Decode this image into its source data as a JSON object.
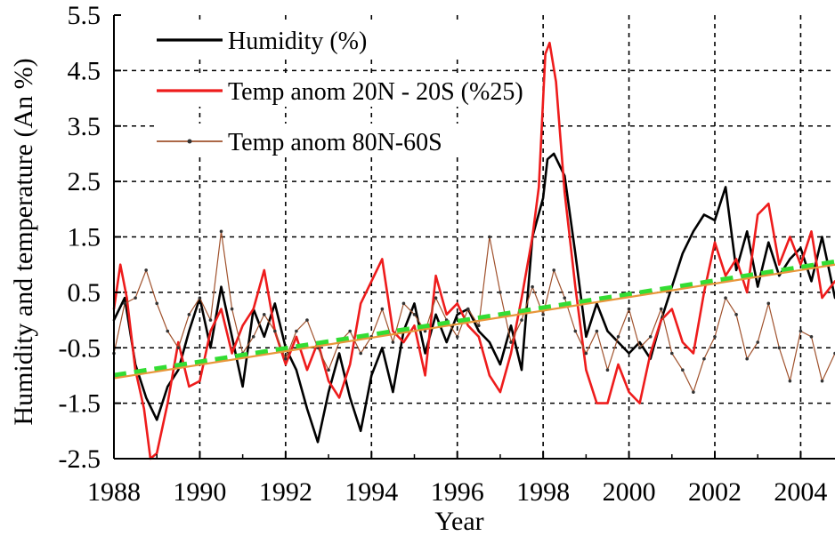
{
  "chart_data": {
    "type": "line",
    "title": "",
    "xlabel": "Year",
    "ylabel": "Humidity and temperature (An %)",
    "xlim": [
      1988,
      2004.8
    ],
    "ylim": [
      -2.5,
      5.5
    ],
    "x_ticks": [
      1988,
      1990,
      1992,
      1994,
      1996,
      1998,
      2000,
      2002,
      2004
    ],
    "x_tick_labels": [
      "1988",
      "1990",
      "1992",
      "1994",
      "1996",
      "1998",
      "2000",
      "2002",
      "2004"
    ],
    "y_ticks": [
      -2.5,
      -1.5,
      -0.5,
      0.5,
      1.5,
      2.5,
      3.5,
      4.5,
      5.5
    ],
    "y_tick_labels": [
      "-2.5",
      "-1.5",
      "-0.5",
      "0.5",
      "1.5",
      "2.5",
      "3.5",
      "4.5",
      "5.5"
    ],
    "grid": true,
    "legend_position": "top-left",
    "series": [
      {
        "name": "Humidity (%)",
        "color": "#000000",
        "width": 2.6,
        "x": [
          1988.0,
          1988.25,
          1988.5,
          1988.75,
          1989.0,
          1989.25,
          1989.5,
          1989.75,
          1990.0,
          1990.25,
          1990.5,
          1990.75,
          1991.0,
          1991.25,
          1991.5,
          1991.75,
          1992.0,
          1992.25,
          1992.5,
          1992.75,
          1993.0,
          1993.25,
          1993.5,
          1993.75,
          1994.0,
          1994.25,
          1994.5,
          1994.75,
          1995.0,
          1995.25,
          1995.5,
          1995.75,
          1996.0,
          1996.25,
          1996.5,
          1996.75,
          1997.0,
          1997.25,
          1997.5,
          1997.75,
          1998.0,
          1998.1,
          1998.25,
          1998.5,
          1998.75,
          1999.0,
          1999.25,
          1999.5,
          1999.75,
          2000.0,
          2000.25,
          2000.5,
          2000.75,
          2001.0,
          2001.25,
          2001.5,
          2001.75,
          2002.0,
          2002.25,
          2002.5,
          2002.75,
          2003.0,
          2003.25,
          2003.5,
          2003.75,
          2004.0,
          2004.25,
          2004.5,
          2004.8
        ],
        "y": [
          0.0,
          0.4,
          -0.8,
          -1.4,
          -1.8,
          -1.2,
          -0.9,
          -0.2,
          0.4,
          -0.5,
          0.6,
          -0.3,
          -1.2,
          0.2,
          -0.3,
          0.3,
          -0.5,
          -0.9,
          -1.6,
          -2.2,
          -1.3,
          -0.6,
          -1.4,
          -2.0,
          -1.0,
          -0.5,
          -1.3,
          -0.2,
          0.3,
          -0.6,
          0.1,
          -0.4,
          0.1,
          0.2,
          -0.2,
          -0.4,
          -0.8,
          -0.1,
          -0.9,
          1.5,
          2.2,
          2.9,
          3.0,
          2.6,
          1.2,
          -0.3,
          0.3,
          -0.2,
          -0.4,
          -0.6,
          -0.4,
          -0.7,
          0.0,
          0.6,
          1.2,
          1.6,
          1.9,
          1.8,
          2.4,
          0.9,
          1.6,
          0.6,
          1.4,
          0.8,
          1.1,
          1.3,
          0.7,
          1.5,
          0.4
        ]
      },
      {
        "name": "Temp anom 20N - 20S (%25)",
        "color": "#ee1c1c",
        "width": 2.6,
        "x": [
          1988.0,
          1988.15,
          1988.3,
          1988.5,
          1988.7,
          1988.85,
          1989.0,
          1989.25,
          1989.5,
          1989.75,
          1990.0,
          1990.25,
          1990.5,
          1990.75,
          1991.0,
          1991.25,
          1991.5,
          1991.75,
          1992.0,
          1992.25,
          1992.5,
          1992.75,
          1993.0,
          1993.25,
          1993.5,
          1993.75,
          1994.0,
          1994.25,
          1994.5,
          1994.75,
          1995.0,
          1995.25,
          1995.5,
          1995.75,
          1996.0,
          1996.25,
          1996.5,
          1996.75,
          1997.0,
          1997.25,
          1997.5,
          1997.75,
          1997.9,
          1998.05,
          1998.15,
          1998.3,
          1998.5,
          1998.75,
          1999.0,
          1999.25,
          1999.5,
          1999.75,
          2000.0,
          2000.25,
          2000.5,
          2000.75,
          2001.0,
          2001.25,
          2001.5,
          2001.75,
          2002.0,
          2002.25,
          2002.5,
          2002.75,
          2003.0,
          2003.25,
          2003.5,
          2003.75,
          2004.0,
          2004.25,
          2004.5,
          2004.8
        ],
        "y": [
          0.2,
          1.0,
          0.4,
          -0.9,
          -1.6,
          -2.5,
          -2.4,
          -1.5,
          -0.4,
          -1.2,
          -1.1,
          -0.2,
          0.2,
          -0.6,
          -0.1,
          0.2,
          0.9,
          -0.2,
          -0.8,
          -0.3,
          -0.9,
          -0.4,
          -1.1,
          -1.4,
          -0.8,
          0.3,
          0.7,
          1.1,
          -0.2,
          -0.4,
          -0.1,
          -1.0,
          0.8,
          0.1,
          0.3,
          -0.1,
          -0.3,
          -1.0,
          -1.3,
          -0.6,
          0.4,
          1.5,
          2.4,
          4.8,
          5.0,
          4.3,
          2.3,
          0.6,
          -0.9,
          -1.5,
          -1.5,
          -0.8,
          -1.3,
          -1.5,
          -0.6,
          0.0,
          0.2,
          -0.4,
          -0.6,
          0.5,
          1.4,
          0.8,
          1.1,
          0.5,
          1.9,
          2.1,
          1.0,
          1.5,
          1.0,
          1.6,
          0.4,
          0.7
        ]
      },
      {
        "name": "Temp anom 80N-60S",
        "color": "#a0522d",
        "width": 1.2,
        "markers": true,
        "x": [
          1988.0,
          1988.25,
          1988.5,
          1988.75,
          1989.0,
          1989.25,
          1989.5,
          1989.75,
          1990.0,
          1990.25,
          1990.5,
          1990.75,
          1991.0,
          1991.25,
          1991.5,
          1991.75,
          1992.0,
          1992.25,
          1992.5,
          1992.75,
          1993.0,
          1993.25,
          1993.5,
          1993.75,
          1994.0,
          1994.25,
          1994.5,
          1994.75,
          1995.0,
          1995.25,
          1995.5,
          1995.75,
          1996.0,
          1996.25,
          1996.5,
          1996.75,
          1997.0,
          1997.25,
          1997.5,
          1997.75,
          1998.0,
          1998.25,
          1998.5,
          1998.75,
          1999.0,
          1999.25,
          1999.5,
          1999.75,
          2000.0,
          2000.25,
          2000.5,
          2000.75,
          2001.0,
          2001.25,
          2001.5,
          2001.75,
          2002.0,
          2002.25,
          2002.5,
          2002.75,
          2003.0,
          2003.25,
          2003.5,
          2003.75,
          2004.0,
          2004.25,
          2004.5,
          2004.8
        ],
        "y": [
          -0.6,
          0.3,
          0.4,
          0.9,
          0.3,
          -0.2,
          -0.5,
          0.1,
          0.4,
          0.0,
          1.6,
          0.2,
          -0.6,
          -0.3,
          0.1,
          -0.2,
          -0.7,
          -0.2,
          0.0,
          -0.5,
          -0.9,
          -0.4,
          -0.2,
          -0.6,
          -0.3,
          0.2,
          -0.4,
          0.3,
          0.1,
          -0.2,
          0.4,
          0.0,
          -0.3,
          0.2,
          -0.1,
          1.5,
          0.5,
          -0.4,
          0.0,
          0.6,
          0.1,
          0.9,
          0.4,
          -0.2,
          -0.6,
          -0.2,
          -0.9,
          -0.3,
          0.2,
          -0.5,
          -0.3,
          0.2,
          -0.6,
          -0.9,
          -1.3,
          -0.7,
          -0.3,
          0.4,
          0.1,
          -0.7,
          -0.4,
          0.3,
          -0.5,
          -1.1,
          -0.2,
          -0.3,
          -1.1,
          -0.6
        ]
      },
      {
        "color": "#33dd33",
        "dashed": true,
        "width": 5.5,
        "x": [
          1988.0,
          2004.8
        ],
        "y": [
          -1.0,
          1.05
        ]
      },
      {
        "color": "#e8963a",
        "width": 2.2,
        "x": [
          1988.0,
          2004.8
        ],
        "y": [
          -1.05,
          1.0
        ]
      }
    ]
  }
}
